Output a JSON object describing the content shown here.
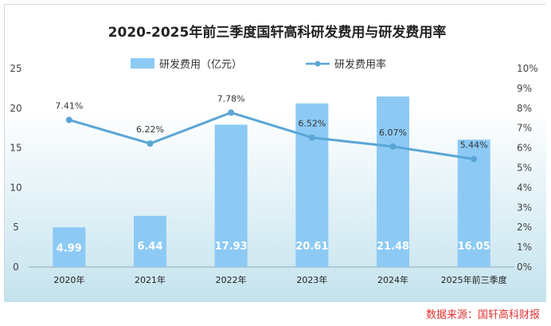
{
  "chart_data": {
    "type": "bar+line",
    "title": "2020-2025年前三季度国轩高科研发费用与研发费用率",
    "categories": [
      "2020年",
      "2021年",
      "2022年",
      "2023年",
      "2024年",
      "2025年前三季度"
    ],
    "series": [
      {
        "name": "研发费用（亿元）",
        "type": "bar",
        "axis": "left",
        "values": [
          4.99,
          6.44,
          17.93,
          20.61,
          21.48,
          16.05
        ],
        "labels": [
          "4.99",
          "6.44",
          "17.93",
          "20.61",
          "21.48",
          "16.05"
        ]
      },
      {
        "name": "研发费用率",
        "type": "line",
        "axis": "right",
        "values": [
          7.41,
          6.22,
          7.78,
          6.52,
          6.07,
          5.44
        ],
        "labels": [
          "7.41%",
          "6.22%",
          "7.78%",
          "6.52%",
          "6.07%",
          "5.44%"
        ]
      }
    ],
    "y_left": {
      "ylim": [
        0,
        25
      ],
      "ticks": [
        "0",
        "5",
        "10",
        "15",
        "20",
        "25"
      ]
    },
    "y_right": {
      "ylim": [
        0,
        10
      ],
      "ticks": [
        "0%",
        "1%",
        "2%",
        "3%",
        "4%",
        "5%",
        "6%",
        "7%",
        "8%",
        "9%",
        "10%"
      ]
    },
    "legend_position": "top-center",
    "colors": {
      "bar": "#8ccaf5",
      "line": "#5aa6d6",
      "source": "#e03131",
      "background_top": "#ffffff",
      "background_bottom": "#c4e3ee"
    }
  },
  "source": "数据来源：国轩高科财报"
}
